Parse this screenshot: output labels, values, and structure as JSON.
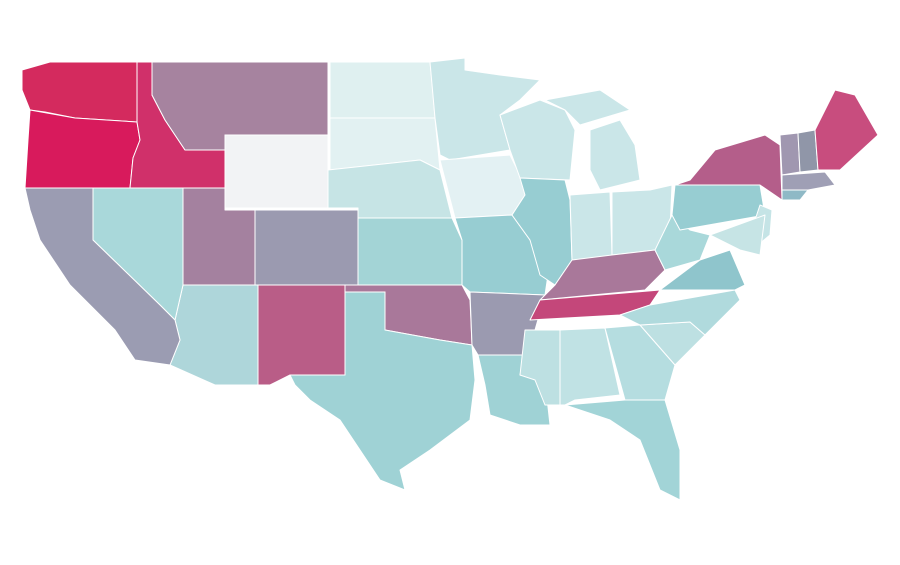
{
  "map": {
    "regions": [
      {
        "color": "#d42a5e"
      },
      {
        "color": "#d81a5c"
      },
      {
        "color": "#d0306a"
      },
      {
        "color": "#a6839f"
      },
      {
        "color": "#f2f3f5"
      },
      {
        "color": "#dff0f0"
      },
      {
        "color": "#e2f1f2"
      },
      {
        "color": "#c6e4e5"
      },
      {
        "color": "#a3d4d6"
      },
      {
        "color": "#a9789a"
      },
      {
        "color": "#9fd2d5"
      },
      {
        "color": "#b95d87"
      },
      {
        "color": "#9b9ab0"
      },
      {
        "color": "#a4819f"
      },
      {
        "color": "#aed6da"
      },
      {
        "color": "#a9d8da"
      },
      {
        "color": "#9b9cb2"
      },
      {
        "color": "#cae6e8"
      },
      {
        "color": "#e3f1f3"
      },
      {
        "color": "#97cdd2"
      },
      {
        "color": "#9b9ab0"
      },
      {
        "color": "#9fd2d5"
      },
      {
        "color": "#cae6e8"
      },
      {
        "color": "#97cdd2"
      },
      {
        "color": "#cae6e8"
      },
      {
        "color": "#cae6e8"
      },
      {
        "color": "#cae6e8"
      },
      {
        "color": "#a9789a"
      },
      {
        "color": "#c4477a"
      },
      {
        "color": "#bde0e2"
      },
      {
        "color": "#c0e2e4"
      },
      {
        "color": "#b5dde0"
      },
      {
        "color": "#a2d4d7"
      },
      {
        "color": "#bde0e2"
      },
      {
        "color": "#b0dadd"
      },
      {
        "color": "#8fc5cc"
      },
      {
        "color": "#a9d8da"
      },
      {
        "color": "#97cdd2"
      },
      {
        "color": "#b45e8a"
      },
      {
        "color": "#a097b0"
      },
      {
        "color": "#9096a8"
      },
      {
        "color": "#c84d7e"
      },
      {
        "color": "#9f9fb5"
      },
      {
        "color": "#8fb9c6"
      },
      {
        "color": "#c5e4e6"
      },
      {
        "color": "#c6e4e5"
      }
    ]
  }
}
